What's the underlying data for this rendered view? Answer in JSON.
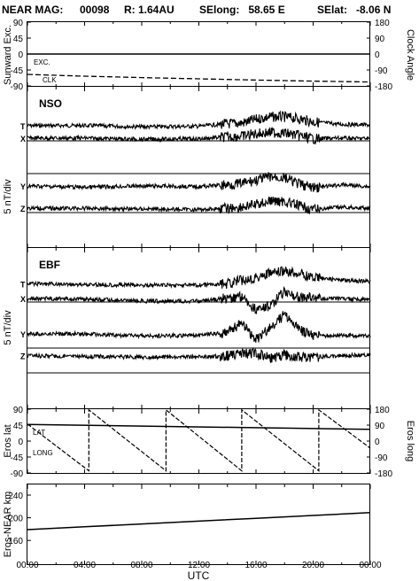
{
  "header": {
    "mission": "NEAR MAG:",
    "day": "00098",
    "range": "R: 1.64AU",
    "selong": "SElong:   58.65 E",
    "selat": "SElat:   -8.06 N"
  },
  "chart_data": [
    {
      "type": "line",
      "panel": "sunward",
      "ylabel": "Sunward Exc.",
      "ylabel_right": "Clock Angle",
      "ylim": [
        -90,
        90
      ],
      "yticks": [
        90,
        45,
        0,
        -45,
        -90
      ],
      "yticks_right": [
        180,
        90,
        0,
        -90,
        -180
      ],
      "x": [
        0,
        4,
        8,
        12,
        16,
        20,
        24
      ],
      "series": [
        {
          "name": "EXC.",
          "values": [
            0,
            0,
            0,
            0,
            0,
            0,
            0
          ]
        },
        {
          "name": "CLK",
          "values": [
            -115,
            -125,
            -133,
            -140,
            -147,
            -153,
            -158
          ]
        }
      ]
    },
    {
      "type": "line",
      "panel": "nso",
      "title": "NSO",
      "ylabel": "5 nT/div",
      "components": [
        "T",
        "X",
        "Y",
        "Z"
      ],
      "x": [
        0,
        4,
        8,
        12,
        14,
        15,
        16,
        17,
        18,
        19,
        20,
        22,
        24
      ],
      "series": [
        {
          "name": "T",
          "values": [
            0.6,
            0.6,
            0.4,
            0.5,
            0.9,
            1.0,
            1.6,
            2.0,
            2.0,
            1.7,
            1.2,
            0.8,
            0.7
          ]
        },
        {
          "name": "X",
          "values": [
            0.3,
            0.3,
            0.1,
            0.2,
            0.5,
            0.6,
            1.0,
            1.2,
            1.1,
            0.7,
            0.2,
            0.3,
            0.2
          ]
        },
        {
          "name": "Y",
          "values": [
            0.0,
            -0.2,
            0.0,
            -0.1,
            0.2,
            0.4,
            0.9,
            1.5,
            1.3,
            0.3,
            -0.3,
            0.2,
            -0.1
          ]
        },
        {
          "name": "Z",
          "values": [
            0.4,
            0.4,
            0.3,
            0.2,
            0.4,
            0.6,
            1.0,
            1.6,
            1.5,
            0.8,
            0.2,
            0.6,
            0.4
          ]
        }
      ]
    },
    {
      "type": "line",
      "panel": "ebf",
      "title": "EBF",
      "ylabel": "5 nT/div",
      "components": [
        "T",
        "X",
        "Y",
        "Z"
      ],
      "x": [
        0,
        4,
        8,
        12,
        14,
        15,
        16,
        17,
        18,
        19,
        20,
        22,
        24
      ],
      "series": [
        {
          "name": "T",
          "values": [
            0.7,
            0.6,
            0.5,
            0.5,
            0.7,
            1.2,
            1.6,
            2.2,
            2.4,
            2.2,
            1.6,
            1.2,
            1.0
          ]
        },
        {
          "name": "X",
          "values": [
            0.4,
            0.3,
            0.0,
            0.0,
            0.4,
            0.7,
            -1.2,
            -0.6,
            1.3,
            0.6,
            0.4,
            0.3,
            0.2
          ]
        },
        {
          "name": "Y",
          "values": [
            0.5,
            0.5,
            0.2,
            0.3,
            0.7,
            2.0,
            -0.4,
            1.4,
            3.2,
            1.2,
            0.2,
            0.3,
            0.2
          ]
        },
        {
          "name": "Z",
          "values": [
            0.8,
            0.7,
            0.6,
            0.6,
            0.8,
            1.0,
            1.2,
            0.4,
            0.9,
            0.6,
            0.6,
            0.8,
            0.9
          ]
        }
      ]
    },
    {
      "type": "line",
      "panel": "eros",
      "ylabel": "Eros lat",
      "ylabel_right": "Eros long",
      "ylim": [
        -90,
        90
      ],
      "yticks": [
        90,
        45,
        0,
        -45,
        -90
      ],
      "yticks_right": [
        180,
        90,
        0,
        -90,
        -180
      ],
      "series": [
        {
          "name": "LAT",
          "x": [
            0,
            24
          ],
          "values": [
            47,
            33
          ]
        },
        {
          "name": "LONG",
          "x": [
            0,
            4.3,
            4.3,
            9.7,
            9.7,
            15.0,
            15.0,
            20.4,
            20.4,
            24
          ],
          "values": [
            48,
            -84,
            88,
            -84,
            88,
            -84,
            88,
            -84,
            88,
            -20
          ]
        }
      ]
    },
    {
      "type": "line",
      "panel": "distance",
      "ylabel": "Eros-NEAR km",
      "ylim": [
        120,
        260
      ],
      "yticks": [
        240,
        200,
        160
      ],
      "series": [
        {
          "name": "",
          "x": [
            0,
            4,
            8,
            12,
            16,
            20,
            24
          ],
          "values": [
            179,
            184,
            189,
            194,
            199,
            204,
            209
          ]
        }
      ]
    }
  ],
  "xaxis": {
    "label": "UTC",
    "ticks": [
      "00:00",
      "04:00",
      "08:00",
      "12:00",
      "16:00",
      "20:00",
      "00:00"
    ]
  }
}
